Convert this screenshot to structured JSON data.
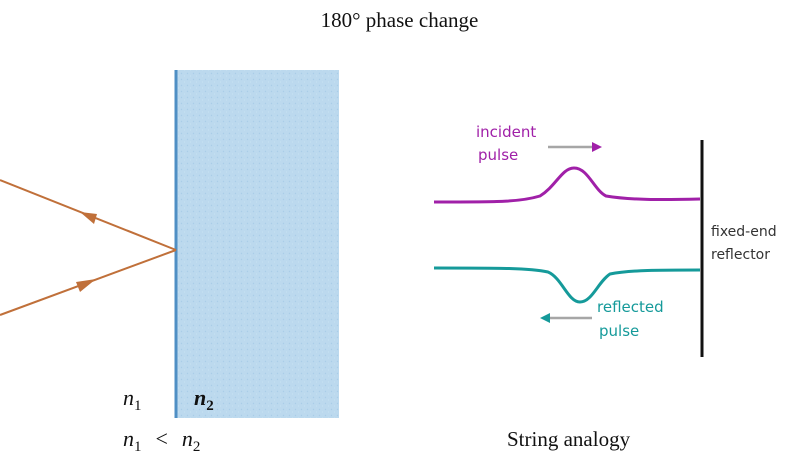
{
  "title": "180° phase change",
  "left_panel": {
    "n1_label": "n",
    "n1_sub": "1",
    "n2_label": "n",
    "n2_sub": "2",
    "relation": {
      "a": "n",
      "a_sub": "1",
      "op": "<",
      "b": "n",
      "b_sub": "2"
    }
  },
  "right_panel": {
    "incident_label_line1": "incident",
    "incident_label_line2": "pulse",
    "reflected_label_line1": "reflected",
    "reflected_label_line2": "pulse",
    "reflector_label_line1": "fixed-end",
    "reflector_label_line2": "reflector",
    "caption": "String analogy"
  },
  "colors": {
    "medium_fill": "#bcd9ee",
    "medium_edge": "#4f8fc4",
    "ray": "#c0703a",
    "incident": "#a020a8",
    "reflected": "#159a9a",
    "arrow_gray": "#a6a6a6",
    "reflector": "#111111"
  }
}
